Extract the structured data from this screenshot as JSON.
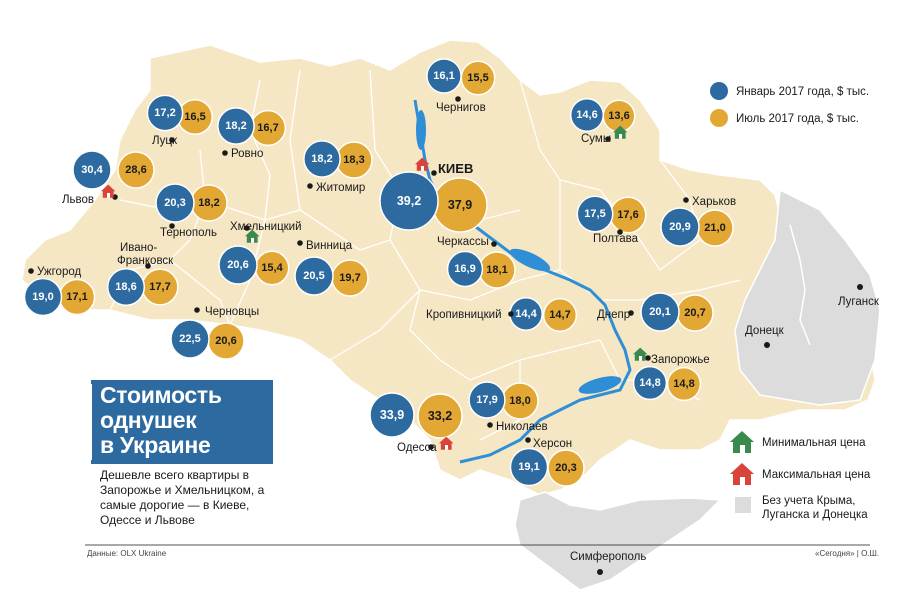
{
  "title": "Стоимость\nоднушек\nв Украине",
  "subtitle": "Дешевле всего квартиры в Запорожье и Хмельницком, а самые дорогие — в Киеве, Одессе и Львове",
  "legend": {
    "january": "Январь 2017 года, $ тыс.",
    "july": "Июль 2017 года, $ тыс.",
    "min_price": "Минимальная цена",
    "max_price": "Максимальная цена",
    "excluded": "Без учета Крыма, Луганска и Донецка"
  },
  "colors": {
    "january": "#2c6aa0",
    "july": "#e3a834",
    "land": "#f5e6c4",
    "excluded": "#dcdcdc",
    "water": "#2f8fd6",
    "min_house": "#3a8a4f",
    "max_house": "#d9443a"
  },
  "cities": [
    {
      "name": "Луцк",
      "jan": "17,2",
      "jul": "16,5",
      "house": ""
    },
    {
      "name": "Ровно",
      "jan": "18,2",
      "jul": "16,7",
      "house": ""
    },
    {
      "name": "Львов",
      "jan": "30,4",
      "jul": "28,6",
      "house": "max"
    },
    {
      "name": "Тернополь",
      "jan": "20,3",
      "jul": "18,2",
      "house": ""
    },
    {
      "name": "Хмельницкий",
      "jan": "20,6",
      "jul": "15,4",
      "house": "min"
    },
    {
      "name": "Ивано-Франковск",
      "jan": "18,6",
      "jul": "17,7",
      "house": ""
    },
    {
      "name": "Ужгород",
      "jan": "19,0",
      "jul": "17,1",
      "house": ""
    },
    {
      "name": "Черновцы",
      "jan": "22,5",
      "jul": "20,6",
      "house": ""
    },
    {
      "name": "Житомир",
      "jan": "18,2",
      "jul": "18,3",
      "house": ""
    },
    {
      "name": "Винница",
      "jan": "20,5",
      "jul": "19,7",
      "house": ""
    },
    {
      "name": "Чернигов",
      "jan": "16,1",
      "jul": "15,5",
      "house": ""
    },
    {
      "name": "КИЕВ",
      "jan": "39,2",
      "jul": "37,9",
      "house": "max"
    },
    {
      "name": "Сумы",
      "jan": "14,6",
      "jul": "13,6",
      "house": "min"
    },
    {
      "name": "Черкассы",
      "jan": "16,9",
      "jul": "18,1",
      "house": ""
    },
    {
      "name": "Полтава",
      "jan": "17,5",
      "jul": "17,6",
      "house": ""
    },
    {
      "name": "Харьков",
      "jan": "20,9",
      "jul": "21,0",
      "house": ""
    },
    {
      "name": "Кропивницкий",
      "jan": "14,4",
      "jul": "14,7",
      "house": ""
    },
    {
      "name": "Днепр",
      "jan": "20,1",
      "jul": "20,7",
      "house": ""
    },
    {
      "name": "Запорожье",
      "jan": "14,8",
      "jul": "14,8",
      "house": "min"
    },
    {
      "name": "Николаев",
      "jan": "17,9",
      "jul": "18,0",
      "house": ""
    },
    {
      "name": "Одесса",
      "jan": "33,9",
      "jul": "33,2",
      "house": "max"
    },
    {
      "name": "Херсон",
      "jan": "19,1",
      "jul": "20,3",
      "house": ""
    }
  ],
  "other_labels": {
    "donetsk": "Донецк",
    "lugansk": "Луганск",
    "simferopol": "Симферополь"
  },
  "footer": {
    "source": "Данные: OLX Ukraine",
    "credit": "«Сегодня» | О.Ш."
  }
}
